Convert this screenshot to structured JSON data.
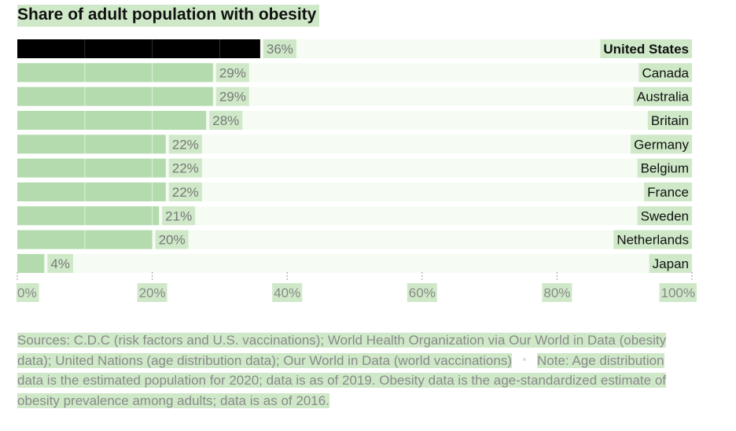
{
  "title": "Share of adult population with obesity",
  "colors": {
    "highlight_bar": "#000000",
    "bar": "#b3dbae",
    "row_bg": "#f6fbf4",
    "label_bg": "#cfe9c8",
    "value_text": "#777777",
    "axis_text": "#888888"
  },
  "chart_data": {
    "type": "bar",
    "orientation": "horizontal",
    "categories": [
      "United States",
      "Canada",
      "Australia",
      "Britain",
      "Germany",
      "Belgium",
      "France",
      "Sweden",
      "Netherlands",
      "Japan"
    ],
    "values": [
      36,
      29,
      29,
      28,
      22,
      22,
      22,
      21,
      20,
      4
    ],
    "value_labels": [
      "36%",
      "29%",
      "29%",
      "28%",
      "22%",
      "22%",
      "22%",
      "21%",
      "20%",
      "4%"
    ],
    "highlighted": "United States",
    "xlim": [
      0,
      100
    ],
    "x_ticks": [
      "0%",
      "20%",
      "40%",
      "60%",
      "80%",
      "100%"
    ],
    "legend": "none",
    "grid": "tick-marks"
  },
  "sources": {
    "part1": "Sources: C.D.C (risk factors and U.S. vaccinations); World Health Organization via Our World in Data (obesity data); United Nations (age distribution data); Our World in Data (world vaccinations)",
    "part2": "Note: Age distribution data is the estimated population for 2020; data is as of 2019. Obesity data is the age-standardized estimate of obesity prevalence among adults; data is as of 2016."
  }
}
